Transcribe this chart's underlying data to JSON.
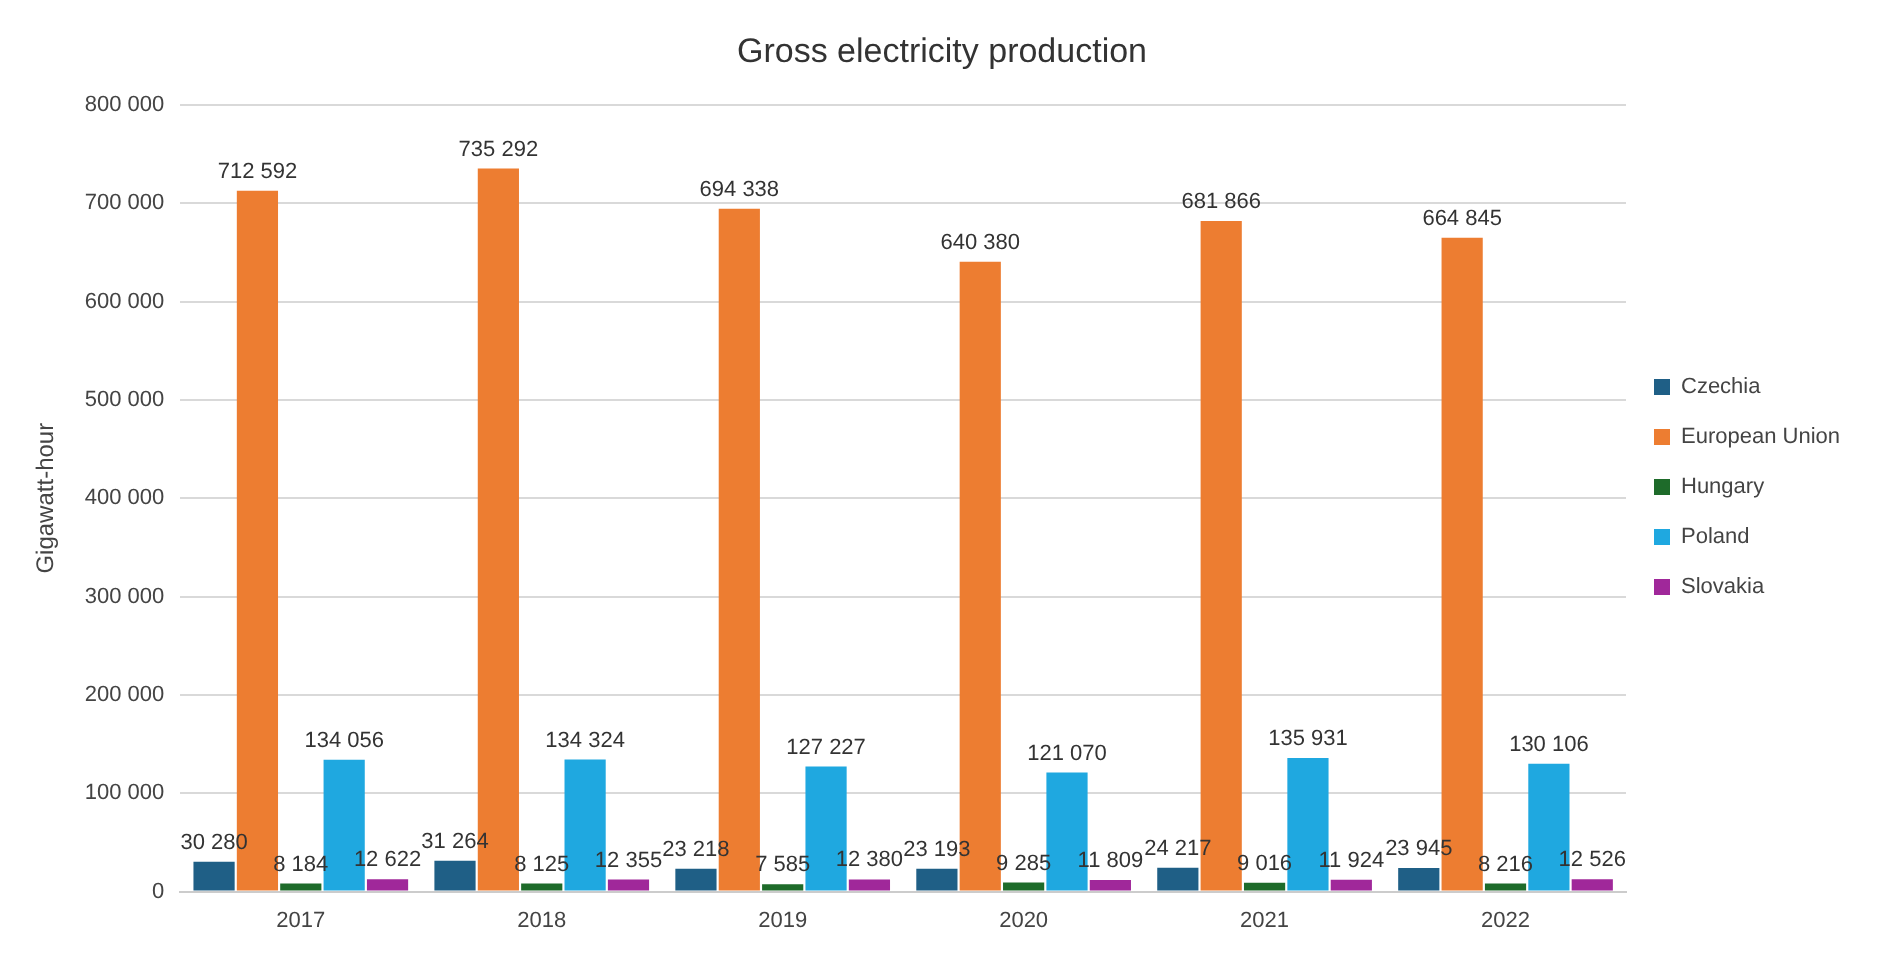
{
  "chart_data": {
    "type": "bar",
    "title": "Gross electricity production",
    "ylabel": "Gigawatt-hour",
    "categories": [
      "2017",
      "2018",
      "2019",
      "2020",
      "2021",
      "2022"
    ],
    "series": [
      {
        "name": "Czechia",
        "color": "#1f5f86",
        "values": [
          30280,
          31264,
          23218,
          23193,
          24217,
          23945
        ],
        "value_labels": [
          "30 280",
          "31 264",
          "23 218",
          "23 193",
          "24 217",
          "23 945"
        ]
      },
      {
        "name": "European Union",
        "color": "#ed7d31",
        "values": [
          712592,
          735292,
          694338,
          640380,
          681866,
          664845
        ],
        "value_labels": [
          "712 592",
          "735 292",
          "694 338",
          "640 380",
          "681 866",
          "664 845"
        ]
      },
      {
        "name": "Hungary",
        "color": "#1e6b2a",
        "values": [
          8184,
          8125,
          7585,
          9285,
          9016,
          8216
        ],
        "value_labels": [
          "8 184",
          "8 125",
          "7 585",
          "9 285",
          "9 016",
          "8 216"
        ]
      },
      {
        "name": "Poland",
        "color": "#1fa8e0",
        "values": [
          134056,
          134324,
          127227,
          121070,
          135931,
          130106
        ],
        "value_labels": [
          "134 056",
          "134 324",
          "127 227",
          "121 070",
          "135 931",
          "130 106"
        ]
      },
      {
        "name": "Slovakia",
        "color": "#a0289a",
        "values": [
          12622,
          12355,
          12380,
          11809,
          11924,
          12526
        ],
        "value_labels": [
          "12 622",
          "12 355",
          "12 380",
          "11 809",
          "11 924",
          "12 526"
        ]
      }
    ],
    "ylim": [
      0,
      800000
    ],
    "yticks": [
      {
        "value": 0,
        "label": "0"
      },
      {
        "value": 100000,
        "label": "100 000"
      },
      {
        "value": 200000,
        "label": "200 000"
      },
      {
        "value": 300000,
        "label": "300 000"
      },
      {
        "value": 400000,
        "label": "400 000"
      },
      {
        "value": 500000,
        "label": "500 000"
      },
      {
        "value": 600000,
        "label": "600 000"
      },
      {
        "value": 700000,
        "label": "700 000"
      },
      {
        "value": 800000,
        "label": "800 000"
      }
    ],
    "grid": "y",
    "legend": "right"
  }
}
